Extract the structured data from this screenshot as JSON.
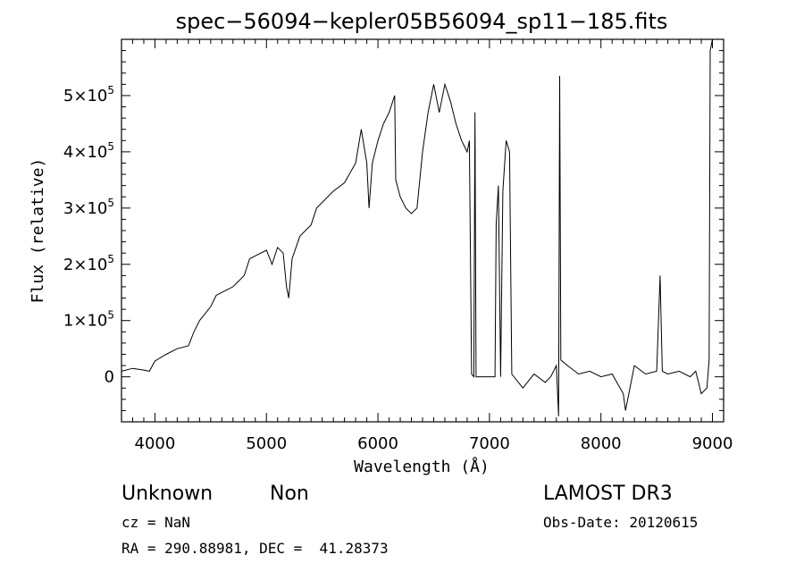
{
  "footer": {
    "object_class": "Unknown",
    "object_subclass": "Non",
    "survey": "LAMOST DR3",
    "cz": "cz = NaN",
    "obs_date": "Obs-Date: 20120615",
    "coords": "RA = 290.88981, DEC =  41.28373"
  },
  "chart_data": {
    "type": "line",
    "title": "spec−56094−kepler05B56094_sp11−185.fits",
    "xlabel": "Wavelength (Å)",
    "ylabel": "Flux (relative)",
    "xlim": [
      3700,
      9100
    ],
    "ylim": [
      -80000,
      600000
    ],
    "grid": false,
    "x_ticks": [
      {
        "value": 4000,
        "label": "4000"
      },
      {
        "value": 5000,
        "label": "5000"
      },
      {
        "value": 6000,
        "label": "6000"
      },
      {
        "value": 7000,
        "label": "7000"
      },
      {
        "value": 8000,
        "label": "8000"
      },
      {
        "value": 9000,
        "label": "9000"
      }
    ],
    "y_ticks": [
      {
        "value": 0,
        "label": "0"
      },
      {
        "value": 100000,
        "label": "1×10",
        "exp": "5"
      },
      {
        "value": 200000,
        "label": "2×10",
        "exp": "5"
      },
      {
        "value": 300000,
        "label": "3×10",
        "exp": "5"
      },
      {
        "value": 400000,
        "label": "4×10",
        "exp": "5"
      },
      {
        "value": 500000,
        "label": "5×10",
        "exp": "5"
      }
    ],
    "series": [
      {
        "points": [
          [
            3700,
            10000
          ],
          [
            3800,
            15000
          ],
          [
            3900,
            12000
          ],
          [
            3950,
            10000
          ],
          [
            4000,
            28000
          ],
          [
            4100,
            40000
          ],
          [
            4200,
            50000
          ],
          [
            4300,
            55000
          ],
          [
            4350,
            80000
          ],
          [
            4400,
            100000
          ],
          [
            4500,
            125000
          ],
          [
            4550,
            145000
          ],
          [
            4600,
            150000
          ],
          [
            4700,
            160000
          ],
          [
            4800,
            180000
          ],
          [
            4850,
            210000
          ],
          [
            4900,
            215000
          ],
          [
            5000,
            225000
          ],
          [
            5050,
            200000
          ],
          [
            5100,
            230000
          ],
          [
            5150,
            220000
          ],
          [
            5180,
            160000
          ],
          [
            5200,
            140000
          ],
          [
            5230,
            210000
          ],
          [
            5300,
            250000
          ],
          [
            5400,
            270000
          ],
          [
            5450,
            300000
          ],
          [
            5500,
            310000
          ],
          [
            5600,
            330000
          ],
          [
            5700,
            345000
          ],
          [
            5800,
            380000
          ],
          [
            5850,
            440000
          ],
          [
            5900,
            380000
          ],
          [
            5920,
            300000
          ],
          [
            5950,
            380000
          ],
          [
            6000,
            420000
          ],
          [
            6050,
            450000
          ],
          [
            6100,
            470000
          ],
          [
            6150,
            500000
          ],
          [
            6160,
            350000
          ],
          [
            6200,
            320000
          ],
          [
            6250,
            300000
          ],
          [
            6300,
            290000
          ],
          [
            6350,
            300000
          ],
          [
            6400,
            400000
          ],
          [
            6450,
            470000
          ],
          [
            6500,
            520000
          ],
          [
            6550,
            470000
          ],
          [
            6600,
            520000
          ],
          [
            6650,
            490000
          ],
          [
            6700,
            450000
          ],
          [
            6750,
            420000
          ],
          [
            6800,
            400000
          ],
          [
            6820,
            420000
          ],
          [
            6840,
            5000
          ],
          [
            6860,
            0
          ],
          [
            6870,
            470000
          ],
          [
            6880,
            0
          ],
          [
            7050,
            0
          ],
          [
            7060,
            270000
          ],
          [
            7080,
            340000
          ],
          [
            7100,
            0
          ],
          [
            7120,
            330000
          ],
          [
            7150,
            420000
          ],
          [
            7180,
            400000
          ],
          [
            7200,
            5000
          ],
          [
            7300,
            -20000
          ],
          [
            7400,
            5000
          ],
          [
            7500,
            -10000
          ],
          [
            7550,
            0
          ],
          [
            7600,
            20000
          ],
          [
            7620,
            -70000
          ],
          [
            7630,
            535000
          ],
          [
            7640,
            30000
          ],
          [
            7700,
            20000
          ],
          [
            7800,
            5000
          ],
          [
            7900,
            10000
          ],
          [
            8000,
            0
          ],
          [
            8100,
            5000
          ],
          [
            8200,
            -30000
          ],
          [
            8220,
            -60000
          ],
          [
            8300,
            20000
          ],
          [
            8400,
            5000
          ],
          [
            8500,
            10000
          ],
          [
            8530,
            180000
          ],
          [
            8550,
            10000
          ],
          [
            8600,
            5000
          ],
          [
            8700,
            10000
          ],
          [
            8800,
            0
          ],
          [
            8850,
            10000
          ],
          [
            8900,
            -30000
          ],
          [
            8950,
            -20000
          ],
          [
            8970,
            30000
          ],
          [
            8980,
            580000
          ],
          [
            9000,
            600000
          ]
        ]
      }
    ]
  }
}
